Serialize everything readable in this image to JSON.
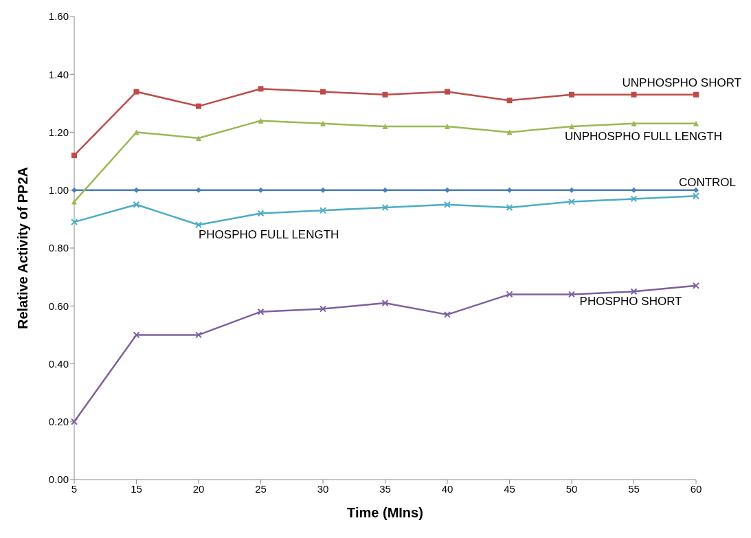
{
  "chart_data": {
    "type": "line",
    "xlabel": "Time (MIns)",
    "ylabel": "Relative Activity of PP2A",
    "categories": [
      "5",
      "15",
      "20",
      "25",
      "30",
      "35",
      "40",
      "45",
      "50",
      "55",
      "60"
    ],
    "ylim": [
      0,
      1.6
    ],
    "yticks": [
      {
        "value": 0,
        "label": "0.00"
      },
      {
        "value": 0.2,
        "label": "0.20"
      },
      {
        "value": 0.4,
        "label": "0.40"
      },
      {
        "value": 0.6,
        "label": "0.60"
      },
      {
        "value": 0.8,
        "label": "0.80"
      },
      {
        "value": 1,
        "label": "1.00"
      },
      {
        "value": 1.2,
        "label": "1.20"
      },
      {
        "value": 1.4,
        "label": "1.40"
      },
      {
        "value": 1.6,
        "label": "1.60"
      }
    ],
    "grid": false,
    "legend": false,
    "series": [
      {
        "name": "CONTROL",
        "color": "#4a7ebb",
        "marker": "diamond",
        "values": [
          1,
          1,
          1,
          1,
          1,
          1,
          1,
          1,
          1,
          1,
          1
        ]
      },
      {
        "name": "UNPHOSPHO SHORT",
        "color": "#be4b48",
        "marker": "square",
        "values": [
          1.12,
          1.34,
          1.29,
          1.35,
          1.34,
          1.33,
          1.34,
          1.31,
          1.33,
          1.33,
          1.33
        ]
      },
      {
        "name": "UNPHOSPHO FULL LENGTH",
        "color": "#98b954",
        "marker": "triangle",
        "values": [
          0.96,
          1.2,
          1.18,
          1.24,
          1.23,
          1.22,
          1.22,
          1.2,
          1.22,
          1.23,
          1.23
        ]
      },
      {
        "name": "PHOSPHO FULL LENGTH",
        "color": "#4bacc6",
        "marker": "cross",
        "values": [
          0.89,
          0.95,
          0.88,
          0.92,
          0.93,
          0.94,
          0.95,
          0.94,
          0.96,
          0.97,
          0.98
        ]
      },
      {
        "name": "PHOSPHO SHORT",
        "color": "#7d60a0",
        "marker": "cross",
        "values": [
          0.2,
          0.5,
          0.5,
          0.58,
          0.59,
          0.61,
          0.57,
          0.64,
          0.64,
          0.65,
          0.67
        ]
      }
    ]
  }
}
